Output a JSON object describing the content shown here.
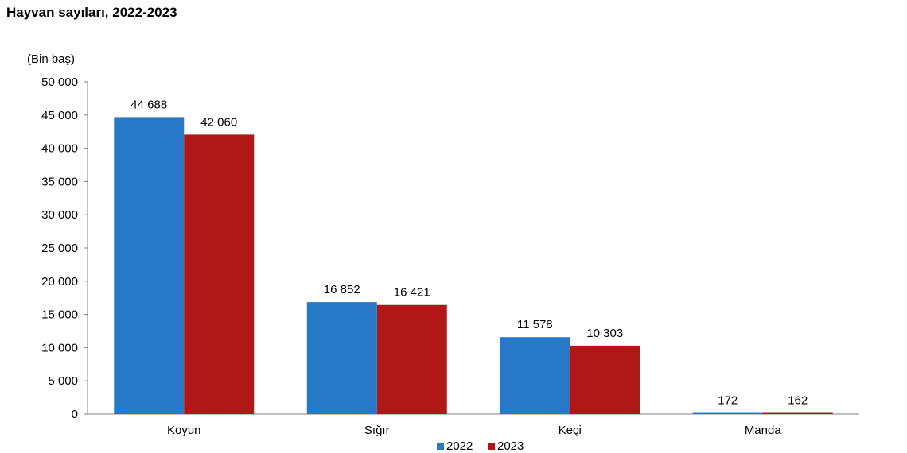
{
  "chart_data": {
    "type": "bar",
    "title": "Hayvan sayıları, 2022-2023",
    "unit_label": "(Bin baş)",
    "categories": [
      "Koyun",
      "Sığır",
      "Keçi",
      "Manda"
    ],
    "series": [
      {
        "name": "2022",
        "color": "#2878c8",
        "values": [
          44688,
          16852,
          11578,
          172
        ],
        "labels": [
          "44 688",
          "16 852",
          "11 578",
          "172"
        ]
      },
      {
        "name": "2023",
        "color": "#b01818",
        "values": [
          42060,
          16421,
          10303,
          162
        ],
        "labels": [
          "42 060",
          "16 421",
          "10 303",
          "162"
        ]
      }
    ],
    "ylim": [
      0,
      50000
    ],
    "yticks": [
      0,
      5000,
      10000,
      15000,
      20000,
      25000,
      30000,
      35000,
      40000,
      45000,
      50000
    ],
    "ytick_labels": [
      "0",
      "5 000",
      "10 000",
      "15 000",
      "20 000",
      "25 000",
      "30 000",
      "35 000",
      "40 000",
      "45 000",
      "50 000"
    ],
    "legend_position": "bottom",
    "grid": false
  }
}
